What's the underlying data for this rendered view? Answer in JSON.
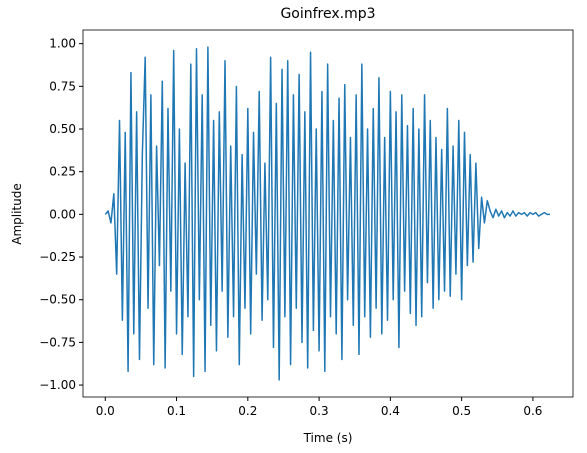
{
  "chart_data": {
    "type": "line",
    "title": "Goinfrex.mp3",
    "x_label": "Time (s)",
    "y_label": "Amplitude",
    "x": [
      0,
      0.004,
      0.008,
      0.012,
      0.016,
      0.02,
      0.024,
      0.028,
      0.032,
      0.036,
      0.04,
      0.044,
      0.048,
      0.052,
      0.056,
      0.06,
      0.064,
      0.068,
      0.072,
      0.076,
      0.08,
      0.084,
      0.088,
      0.092,
      0.096,
      0.1,
      0.104,
      0.108,
      0.112,
      0.116,
      0.12,
      0.124,
      0.128,
      0.132,
      0.136,
      0.14,
      0.144,
      0.148,
      0.152,
      0.156,
      0.16,
      0.164,
      0.168,
      0.172,
      0.176,
      0.18,
      0.184,
      0.188,
      0.192,
      0.196,
      0.2,
      0.204,
      0.208,
      0.212,
      0.216,
      0.22,
      0.224,
      0.228,
      0.232,
      0.236,
      0.24,
      0.244,
      0.248,
      0.252,
      0.256,
      0.26,
      0.264,
      0.268,
      0.272,
      0.276,
      0.28,
      0.284,
      0.288,
      0.292,
      0.296,
      0.3,
      0.304,
      0.308,
      0.312,
      0.316,
      0.32,
      0.324,
      0.328,
      0.332,
      0.336,
      0.34,
      0.344,
      0.348,
      0.352,
      0.356,
      0.36,
      0.364,
      0.368,
      0.372,
      0.376,
      0.38,
      0.384,
      0.388,
      0.392,
      0.396,
      0.4,
      0.404,
      0.408,
      0.412,
      0.416,
      0.42,
      0.424,
      0.428,
      0.432,
      0.436,
      0.44,
      0.444,
      0.448,
      0.452,
      0.456,
      0.46,
      0.464,
      0.468,
      0.472,
      0.476,
      0.48,
      0.484,
      0.488,
      0.492,
      0.496,
      0.5,
      0.504,
      0.508,
      0.512,
      0.516,
      0.52,
      0.524,
      0.528,
      0.532,
      0.536,
      0.54,
      0.544,
      0.548,
      0.552,
      0.556,
      0.56,
      0.564,
      0.568,
      0.572,
      0.576,
      0.58,
      0.584,
      0.588,
      0.592,
      0.596,
      0.6,
      0.604,
      0.608,
      0.612,
      0.616,
      0.62,
      0.624
    ],
    "series": [
      {
        "color": "#1f77b4",
        "values": [
          0,
          0.02,
          -0.05,
          0.12,
          -0.35,
          0.55,
          -0.62,
          0.48,
          -0.92,
          0.83,
          -0.7,
          0.6,
          -0.85,
          0.35,
          0.92,
          -0.55,
          0.7,
          -0.88,
          0.4,
          -0.3,
          0.78,
          -0.9,
          0.62,
          -0.45,
          0.96,
          -0.7,
          0.5,
          -0.82,
          0.3,
          -0.6,
          0.88,
          -0.95,
          0.97,
          -0.5,
          0.7,
          -0.92,
          0.98,
          -0.65,
          0.55,
          -0.8,
          0.6,
          -0.45,
          0.9,
          -0.72,
          0.4,
          -0.6,
          0.75,
          -0.88,
          0.35,
          -0.55,
          0.62,
          -0.7,
          0.48,
          -0.35,
          0.72,
          -0.62,
          0.3,
          -0.5,
          0.92,
          -0.78,
          0.65,
          -0.97,
          0.85,
          -0.6,
          0.9,
          -0.88,
          0.7,
          -0.55,
          0.82,
          -0.75,
          0.6,
          -0.9,
          0.95,
          -0.68,
          0.5,
          -0.8,
          0.72,
          -0.92,
          0.88,
          -0.6,
          0.55,
          -0.7,
          0.68,
          -0.85,
          0.76,
          -0.5,
          0.45,
          -0.65,
          0.7,
          -0.82,
          0.88,
          -0.6,
          0.5,
          -0.72,
          0.62,
          -0.55,
          0.8,
          -0.7,
          0.45,
          -0.62,
          0.72,
          -0.5,
          0.6,
          -0.78,
          0.7,
          -0.45,
          0.52,
          -0.58,
          0.62,
          -0.65,
          0.5,
          -0.6,
          0.7,
          -0.4,
          0.55,
          -0.55,
          0.45,
          -0.5,
          0.38,
          -0.45,
          0.62,
          -0.48,
          0.4,
          -0.35,
          0.55,
          -0.5,
          0.48,
          -0.3,
          0.35,
          -0.28,
          0.3,
          -0.2,
          0.1,
          -0.05,
          0.08,
          0.02,
          -0.02,
          0.03,
          -0.01,
          0.02,
          -0.02,
          0.01,
          -0.01,
          0.02,
          -0.01,
          0.01,
          0,
          0.01,
          -0.01,
          0.01,
          0,
          0.01,
          -0.01,
          0,
          0.01,
          0,
          0
        ]
      }
    ],
    "xlim": [
      -0.03125,
      0.65625
    ],
    "ylim": [
      -1.07,
      1.08
    ],
    "xticks": [
      {
        "value": 0,
        "label": "0.0"
      },
      {
        "value": 0.1,
        "label": "0.1"
      },
      {
        "value": 0.2,
        "label": "0.2"
      },
      {
        "value": 0.3,
        "label": "0.3"
      },
      {
        "value": 0.4,
        "label": "0.4"
      },
      {
        "value": 0.5,
        "label": "0.5"
      },
      {
        "value": 0.6,
        "label": "0.6"
      }
    ],
    "yticks": [
      {
        "value": -1,
        "label": "−1.00"
      },
      {
        "value": -0.75,
        "label": "−0.75"
      },
      {
        "value": -0.5,
        "label": "−0.50"
      },
      {
        "value": -0.25,
        "label": "−0.25"
      },
      {
        "value": 0,
        "label": "0.00"
      },
      {
        "value": 0.25,
        "label": "0.25"
      },
      {
        "value": 0.5,
        "label": "0.50"
      },
      {
        "value": 0.75,
        "label": "0.75"
      },
      {
        "value": 1,
        "label": "1.00"
      }
    ]
  }
}
